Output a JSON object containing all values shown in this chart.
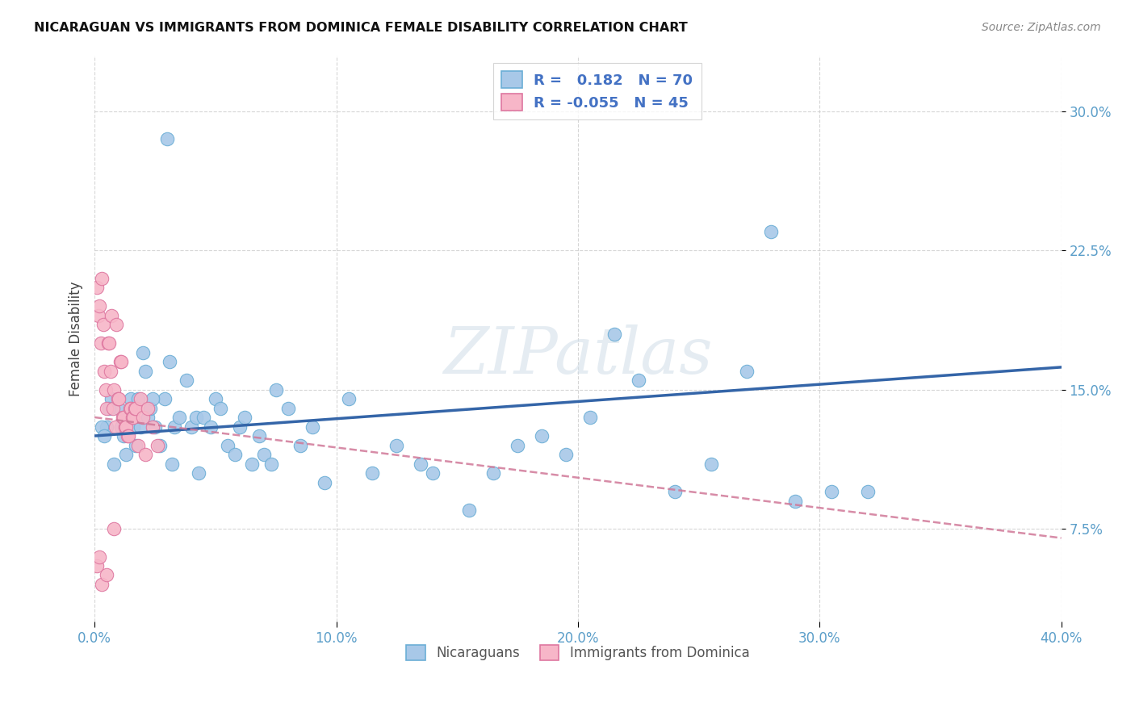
{
  "title": "NICARAGUAN VS IMMIGRANTS FROM DOMINICA FEMALE DISABILITY CORRELATION CHART",
  "source": "Source: ZipAtlas.com",
  "xlabel_vals": [
    0.0,
    10.0,
    20.0,
    30.0,
    40.0
  ],
  "ylabel_vals": [
    7.5,
    15.0,
    22.5,
    30.0
  ],
  "xmin": 0.0,
  "xmax": 40.0,
  "ymin": 2.5,
  "ymax": 33.0,
  "blue_color": "#a8c8e8",
  "blue_edge": "#6baed6",
  "pink_color": "#f7b6c8",
  "pink_edge": "#de77a0",
  "trend_blue": "#3465a8",
  "trend_pink": "#d07898",
  "watermark": "ZIPatlas",
  "legend_blue_label": "R =   0.182   N = 70",
  "legend_pink_label": "R = -0.055   N = 45",
  "legend_bottom_blue": "Nicaraguans",
  "legend_bottom_pink": "Immigrants from Dominica",
  "blue_trend_x": [
    0.0,
    40.0
  ],
  "blue_trend_y": [
    12.5,
    16.2
  ],
  "pink_trend_x": [
    0.0,
    40.0
  ],
  "pink_trend_y": [
    13.5,
    7.0
  ],
  "blue_x": [
    3.0,
    0.5,
    0.7,
    1.0,
    1.2,
    1.4,
    1.5,
    1.6,
    1.7,
    1.8,
    1.9,
    2.0,
    2.1,
    2.2,
    2.3,
    2.5,
    2.7,
    2.9,
    3.1,
    3.3,
    3.5,
    3.8,
    4.0,
    4.2,
    4.5,
    4.8,
    5.0,
    5.2,
    5.5,
    5.8,
    6.0,
    6.2,
    6.5,
    6.8,
    7.0,
    7.3,
    7.5,
    8.0,
    8.5,
    9.0,
    9.5,
    10.5,
    11.5,
    12.5,
    13.5,
    14.0,
    15.5,
    16.5,
    17.5,
    18.5,
    19.5,
    20.5,
    21.5,
    22.5,
    24.0,
    25.5,
    27.0,
    29.0,
    30.5,
    32.0,
    0.3,
    0.4,
    0.6,
    0.8,
    1.1,
    1.3,
    2.4,
    3.2,
    4.3,
    28.0
  ],
  "blue_y": [
    28.5,
    13.0,
    14.5,
    14.0,
    12.5,
    13.5,
    14.5,
    13.0,
    12.0,
    14.5,
    13.0,
    17.0,
    16.0,
    13.5,
    14.0,
    13.0,
    12.0,
    14.5,
    16.5,
    13.0,
    13.5,
    15.5,
    13.0,
    13.5,
    13.5,
    13.0,
    14.5,
    14.0,
    12.0,
    11.5,
    13.0,
    13.5,
    11.0,
    12.5,
    11.5,
    11.0,
    15.0,
    14.0,
    12.0,
    13.0,
    10.0,
    14.5,
    10.5,
    12.0,
    11.0,
    10.5,
    8.5,
    10.5,
    12.0,
    12.5,
    11.5,
    13.5,
    18.0,
    15.5,
    9.5,
    11.0,
    16.0,
    9.0,
    9.5,
    9.5,
    13.0,
    12.5,
    14.0,
    11.0,
    13.0,
    11.5,
    14.5,
    11.0,
    10.5,
    23.5
  ],
  "pink_x": [
    0.1,
    0.15,
    0.2,
    0.25,
    0.3,
    0.35,
    0.4,
    0.45,
    0.5,
    0.55,
    0.6,
    0.65,
    0.7,
    0.75,
    0.8,
    0.85,
    0.9,
    0.95,
    1.0,
    1.05,
    1.1,
    1.15,
    1.2,
    1.25,
    1.3,
    1.35,
    1.4,
    1.45,
    1.5,
    1.55,
    1.6,
    1.65,
    1.7,
    1.8,
    1.9,
    2.0,
    2.1,
    2.2,
    2.4,
    2.6,
    0.1,
    0.2,
    0.3,
    0.5,
    0.8
  ],
  "pink_y": [
    20.5,
    19.0,
    19.5,
    17.5,
    21.0,
    18.5,
    16.0,
    15.0,
    14.0,
    17.5,
    17.5,
    16.0,
    19.0,
    14.0,
    15.0,
    13.0,
    18.5,
    14.5,
    14.5,
    16.5,
    16.5,
    13.5,
    13.5,
    13.0,
    13.0,
    12.5,
    12.5,
    14.0,
    14.0,
    13.5,
    13.5,
    14.0,
    14.0,
    12.0,
    14.5,
    13.5,
    11.5,
    14.0,
    13.0,
    12.0,
    5.5,
    6.0,
    4.5,
    5.0,
    7.5
  ]
}
